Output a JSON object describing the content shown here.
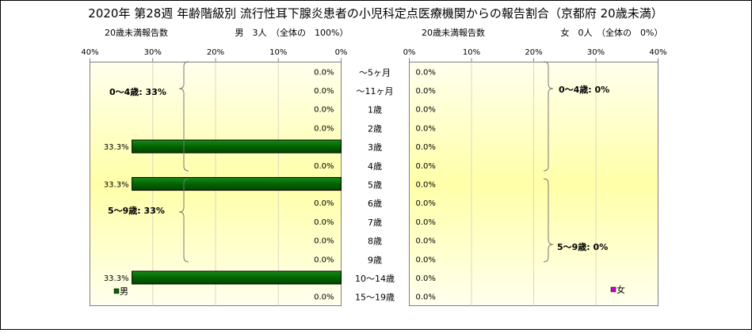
{
  "title": "2020年 第28週 年齢階級別 流行性耳下腺炎患者の小児科定点医療機関からの報告割合（京都府 20歳未満）",
  "left_panel": {
    "caption": "20歳未満報告数",
    "summary": "男　3人　（全体の　100%）",
    "axis_ticks": [
      "40%",
      "30%",
      "20%",
      "10%",
      "0%"
    ],
    "group_labels": [
      "0～4歳: 33%",
      "5～9歳: 33%"
    ],
    "legend": "男"
  },
  "right_panel": {
    "caption": "20歳未満報告数",
    "summary": "女　0人　（全体の　0%）",
    "axis_ticks": [
      "0%",
      "10%",
      "20%",
      "30%",
      "40%"
    ],
    "group_labels": [
      "0～4歳: 0%",
      "5～9歳: 0%"
    ],
    "legend": "女"
  },
  "chart_data": {
    "type": "bar",
    "orientation": "horizontal",
    "title": "2020年 第28週 年齢階級別 流行性耳下腺炎患者の小児科定点医療機関からの報告割合（京都府 20歳未満）",
    "categories": [
      "～5ヶ月",
      "～11ヶ月",
      "1歳",
      "2歳",
      "3歳",
      "4歳",
      "5歳",
      "6歳",
      "7歳",
      "8歳",
      "9歳",
      "10～14歳",
      "15～19歳"
    ],
    "xlim": [
      0,
      40
    ],
    "series": [
      {
        "name": "男",
        "color": "#006600",
        "values": [
          0,
          0,
          0,
          0,
          33.3,
          0,
          33.3,
          0,
          0,
          0,
          0,
          33.3,
          0
        ],
        "labels": [
          "0.0%",
          "0.0%",
          "0.0%",
          "0.0%",
          "33.3%",
          "0.0%",
          "33.3%",
          "0.0%",
          "0.0%",
          "0.0%",
          "0.0%",
          "33.3%",
          "0.0%"
        ]
      },
      {
        "name": "女",
        "color": "#cc00cc",
        "values": [
          0,
          0,
          0,
          0,
          0,
          0,
          0,
          0,
          0,
          0,
          0,
          0,
          0
        ],
        "labels": [
          "0.0%",
          "0.0%",
          "0.0%",
          "0.0%",
          "0.0%",
          "0.0%",
          "0.0%",
          "0.0%",
          "0.0%",
          "0.0%",
          "0.0%",
          "0.0%",
          "0.0%"
        ]
      }
    ]
  }
}
